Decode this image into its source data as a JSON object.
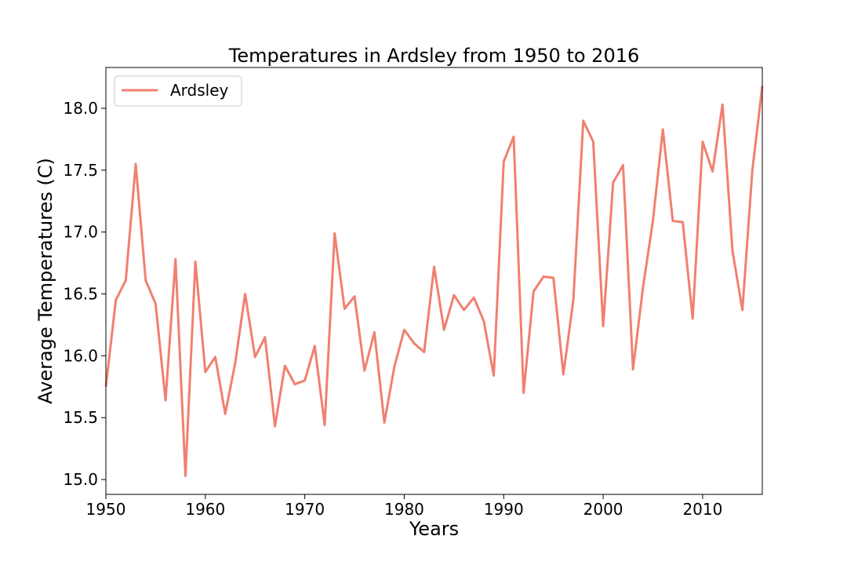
{
  "chart_data": {
    "type": "line",
    "title": "Temperatures in Ardsley from 1950 to 2016",
    "xlabel": "Years",
    "ylabel": "Average Temperatures (C)",
    "xlim": [
      1950,
      2016
    ],
    "ylim": [
      14.88,
      18.33
    ],
    "xticks": [
      1950,
      1960,
      1970,
      1980,
      1990,
      2000,
      2010
    ],
    "xtick_labels": [
      "1950",
      "1960",
      "1970",
      "1980",
      "1990",
      "2000",
      "2010"
    ],
    "yticks": [
      15.0,
      15.5,
      16.0,
      16.5,
      17.0,
      17.5,
      18.0
    ],
    "ytick_labels": [
      "15.0",
      "15.5",
      "16.0",
      "16.5",
      "17.0",
      "17.5",
      "18.0"
    ],
    "grid": false,
    "legend_position": "upper-left",
    "series": [
      {
        "name": "Ardsley",
        "color": "#f08070",
        "x": [
          1950,
          1951,
          1952,
          1953,
          1954,
          1955,
          1956,
          1957,
          1958,
          1959,
          1960,
          1961,
          1962,
          1963,
          1964,
          1965,
          1966,
          1967,
          1968,
          1969,
          1970,
          1971,
          1972,
          1973,
          1974,
          1975,
          1976,
          1977,
          1978,
          1979,
          1980,
          1981,
          1982,
          1983,
          1984,
          1985,
          1986,
          1987,
          1988,
          1989,
          1990,
          1991,
          1992,
          1993,
          1994,
          1995,
          1996,
          1997,
          1998,
          1999,
          2000,
          2001,
          2002,
          2003,
          2004,
          2005,
          2006,
          2007,
          2008,
          2009,
          2010,
          2011,
          2012,
          2013,
          2014,
          2015,
          2016
        ],
        "y": [
          15.75,
          16.45,
          16.61,
          17.55,
          16.61,
          16.42,
          15.64,
          16.78,
          15.03,
          16.76,
          15.87,
          15.99,
          15.53,
          15.94,
          16.5,
          15.99,
          16.15,
          15.43,
          15.92,
          15.77,
          15.8,
          16.08,
          15.44,
          16.99,
          16.38,
          16.48,
          15.88,
          16.19,
          15.46,
          15.91,
          16.21,
          16.1,
          16.03,
          16.72,
          16.21,
          16.49,
          16.37,
          16.47,
          16.28,
          15.84,
          17.57,
          17.77,
          15.7,
          16.52,
          16.64,
          16.63,
          15.85,
          16.45,
          17.9,
          17.73,
          16.24,
          17.4,
          17.54,
          15.89,
          16.55,
          17.09,
          17.83,
          17.09,
          17.08,
          16.3,
          17.73,
          17.49,
          18.03,
          16.85,
          16.37,
          17.5,
          18.18
        ]
      }
    ]
  }
}
